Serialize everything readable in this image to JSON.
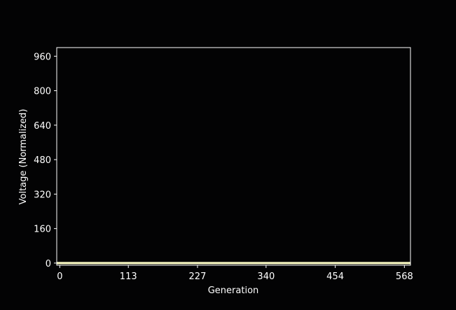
{
  "chart_data": {
    "type": "heatmap",
    "title": "",
    "xlabel": "Generation",
    "ylabel": "Voltage (Normalized)",
    "xlim": [
      -5,
      578
    ],
    "ylim": [
      -10,
      1000
    ],
    "x_ticks": [
      0,
      113,
      227,
      340,
      454,
      568
    ],
    "y_ticks": [
      0,
      160,
      320,
      480,
      640,
      800,
      960
    ],
    "colormap_fill": "#ffffc8",
    "background_color": "#030304",
    "axes_edge_color": "#ffffff",
    "band": {
      "x": [
        -5,
        578
      ],
      "y": [
        -5,
        5
      ]
    }
  }
}
